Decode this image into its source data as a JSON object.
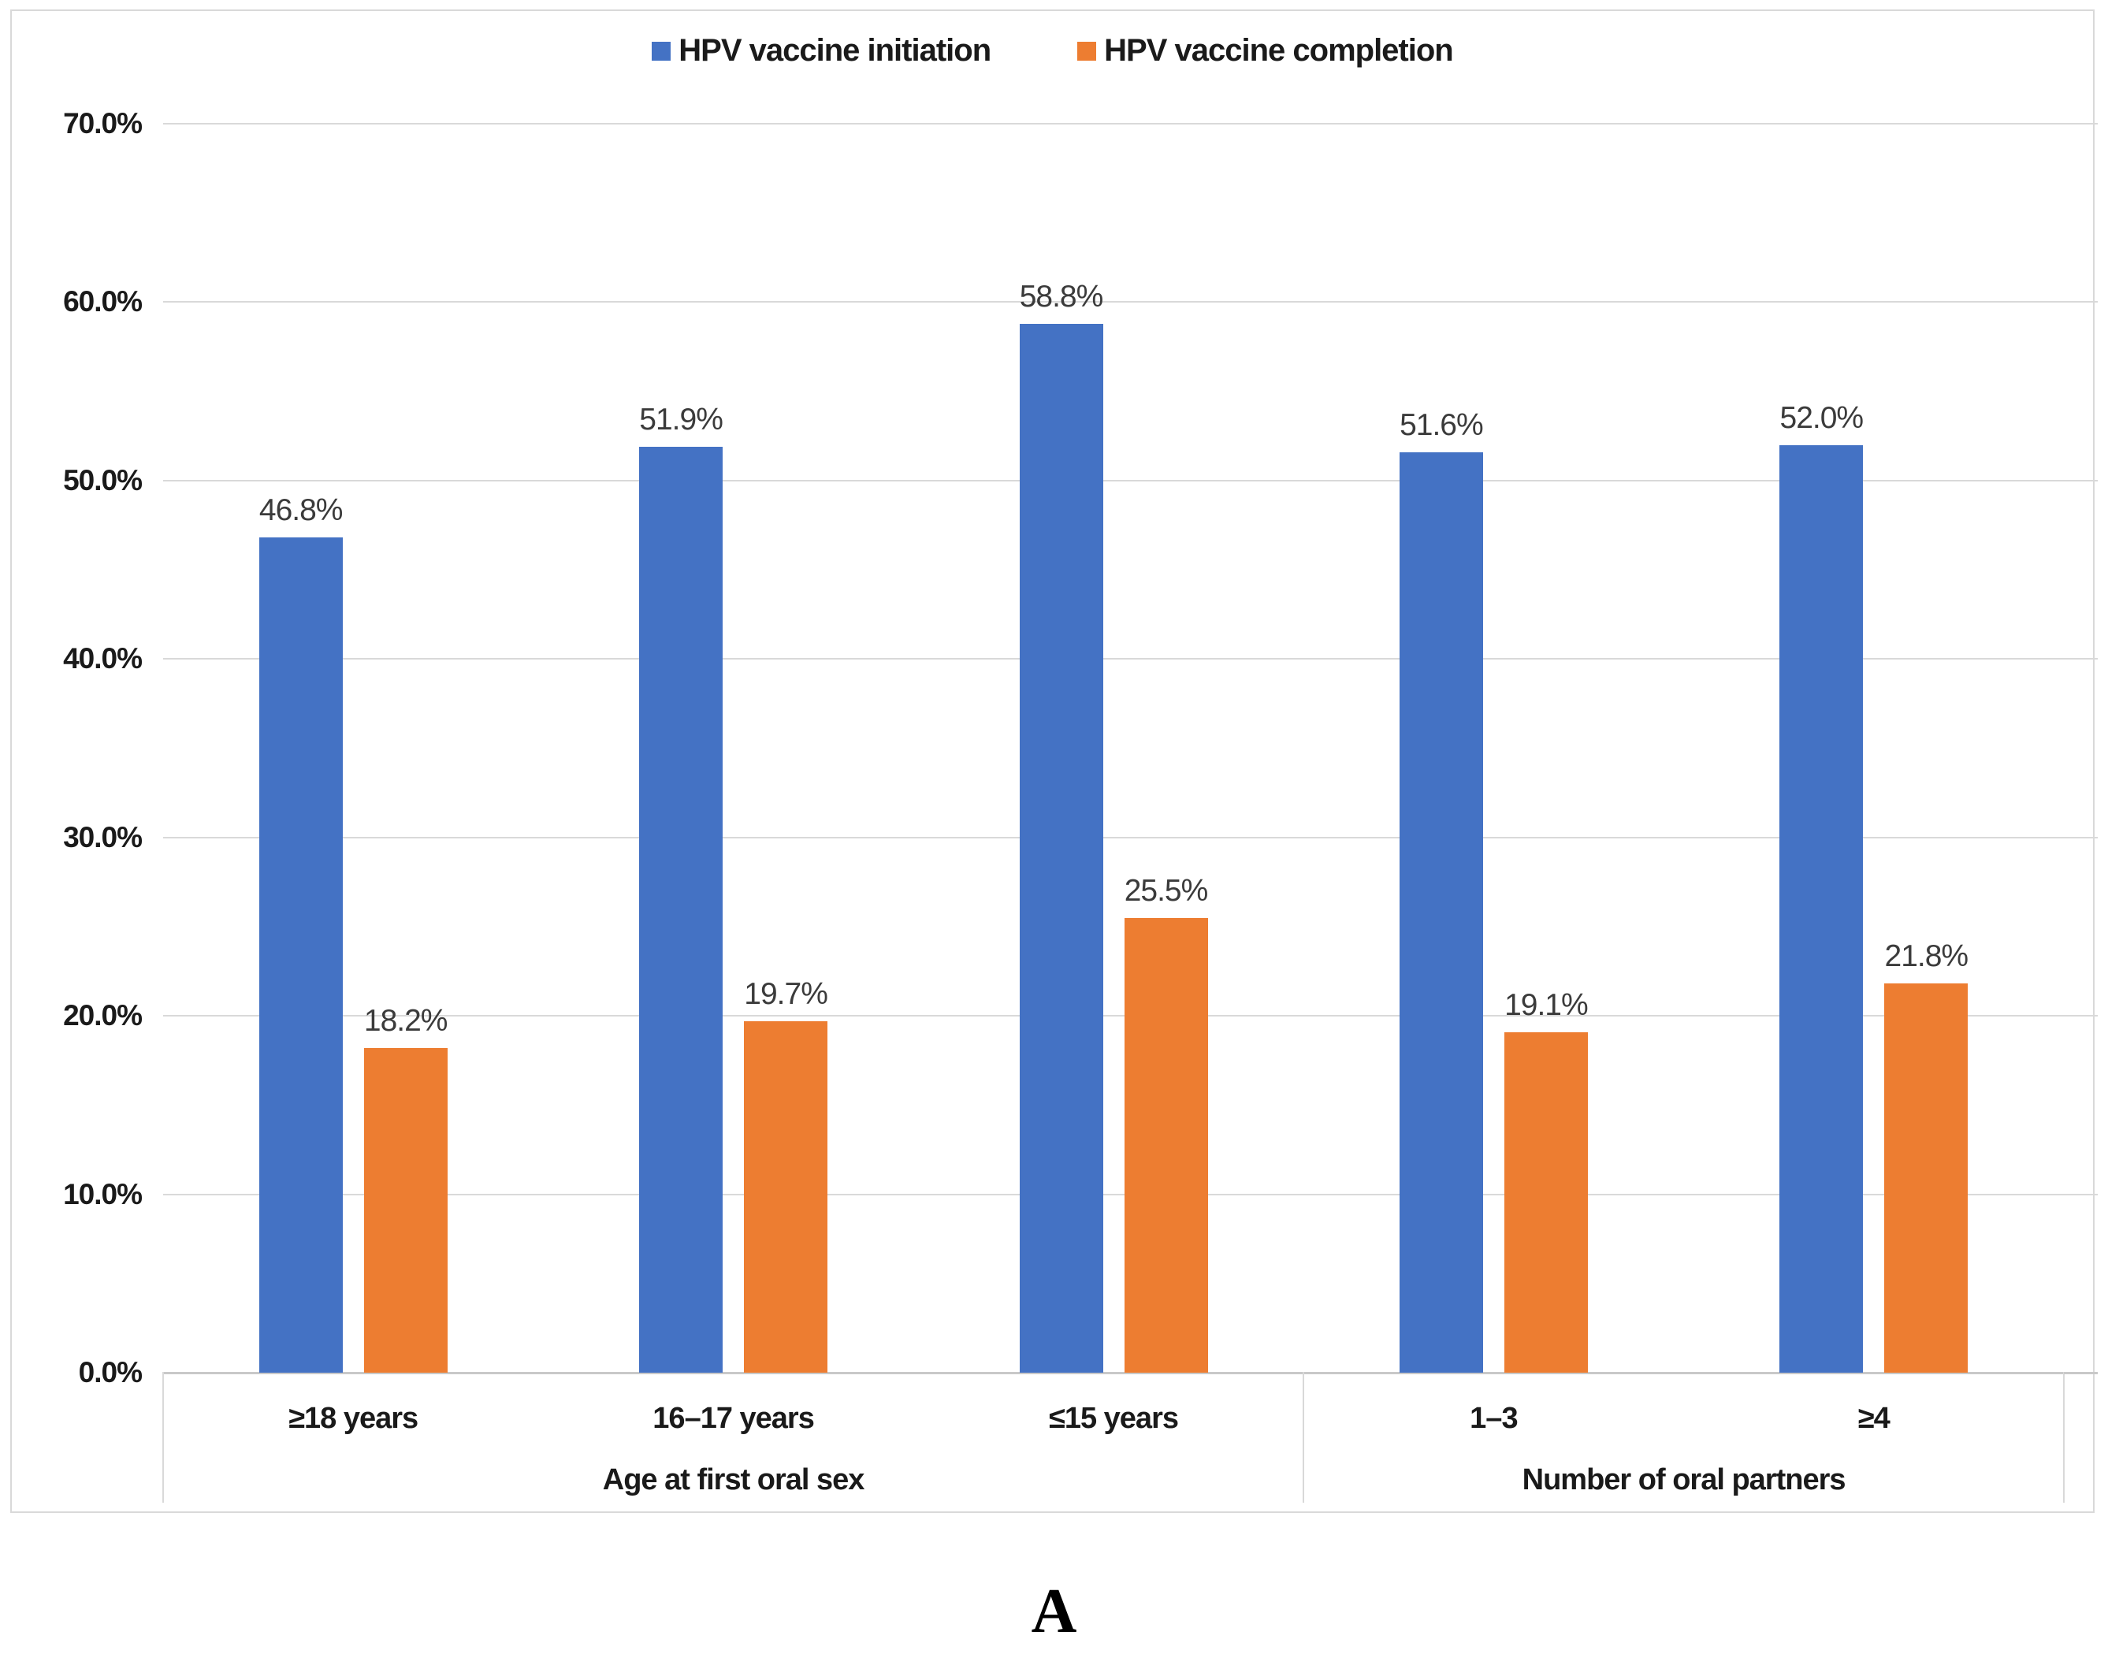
{
  "panel_label": "A",
  "chart_data": {
    "type": "bar",
    "title": "",
    "legend_position": "top",
    "grid": true,
    "ylim": [
      0,
      70
    ],
    "y_ticks": [
      "0.0%",
      "10.0%",
      "20.0%",
      "30.0%",
      "40.0%",
      "50.0%",
      "60.0%",
      "70.0%"
    ],
    "y_tick_values": [
      0,
      10,
      20,
      30,
      40,
      50,
      60,
      70
    ],
    "colors": {
      "initiation": "#4472C4",
      "completion": "#ED7D31"
    },
    "groups": [
      {
        "title": "Age at first oral sex",
        "categories": [
          "≥18 years",
          "16–17 years",
          "≤15 years"
        ]
      },
      {
        "title": "Number of oral partners",
        "categories": [
          "1–3",
          "≥4"
        ]
      }
    ],
    "categories": [
      "≥18 years",
      "16–17 years",
      "≤15 years",
      "1–3",
      "≥4"
    ],
    "series": [
      {
        "name": "HPV vaccine initiation",
        "color": "#4472C4",
        "values": [
          46.8,
          51.9,
          58.8,
          51.6,
          52.0
        ],
        "labels": [
          "46.8%",
          "51.9%",
          "58.8%",
          "51.6%",
          "52.0%"
        ]
      },
      {
        "name": "HPV vaccine completion",
        "color": "#ED7D31",
        "values": [
          18.2,
          19.7,
          25.5,
          19.1,
          21.8
        ],
        "labels": [
          "18.2%",
          "19.7%",
          "25.5%",
          "19.1%",
          "21.8%"
        ]
      }
    ]
  }
}
